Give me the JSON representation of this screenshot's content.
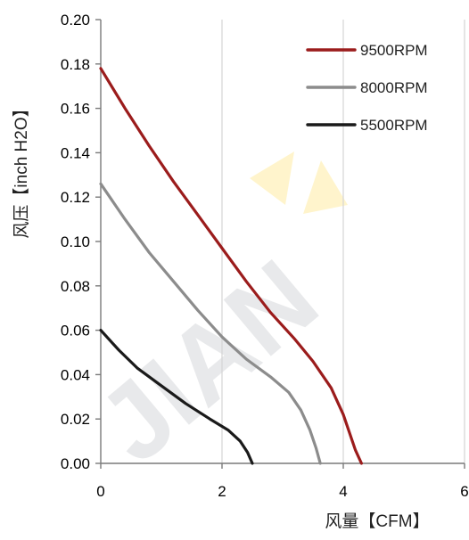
{
  "chart_data": {
    "type": "line",
    "title": "",
    "xlabel": "风量【CFM】",
    "ylabel": "风压【inch H2O】",
    "xlim": [
      0,
      6
    ],
    "ylim": [
      0,
      0.2
    ],
    "x_ticks": [
      "0",
      "2",
      "4",
      "6"
    ],
    "y_ticks": [
      "0.00",
      "0.02",
      "0.04",
      "0.06",
      "0.08",
      "0.10",
      "0.12",
      "0.14",
      "0.16",
      "0.18",
      "0.20"
    ],
    "grid": "vertical",
    "legend_position": "top-right",
    "series": [
      {
        "name": "9500RPM",
        "color": "#9b1c1c",
        "x": [
          0,
          0.4,
          0.8,
          1.2,
          1.6,
          2.0,
          2.4,
          2.8,
          3.2,
          3.5,
          3.8,
          4.0,
          4.1,
          4.2,
          4.3
        ],
        "y": [
          0.178,
          0.16,
          0.143,
          0.127,
          0.112,
          0.097,
          0.082,
          0.068,
          0.056,
          0.046,
          0.034,
          0.022,
          0.014,
          0.006,
          0.0
        ]
      },
      {
        "name": "8000RPM",
        "color": "#8c8c8c",
        "x": [
          0,
          0.4,
          0.8,
          1.2,
          1.6,
          2.0,
          2.4,
          2.8,
          3.1,
          3.3,
          3.45,
          3.55,
          3.62
        ],
        "y": [
          0.126,
          0.11,
          0.095,
          0.082,
          0.069,
          0.057,
          0.047,
          0.039,
          0.032,
          0.024,
          0.015,
          0.007,
          0.0
        ]
      },
      {
        "name": "5500RPM",
        "color": "#1a1a1a",
        "x": [
          0,
          0.3,
          0.6,
          1.0,
          1.4,
          1.8,
          2.1,
          2.3,
          2.42,
          2.5
        ],
        "y": [
          0.06,
          0.051,
          0.043,
          0.035,
          0.027,
          0.02,
          0.015,
          0.01,
          0.005,
          0.0
        ]
      }
    ]
  }
}
